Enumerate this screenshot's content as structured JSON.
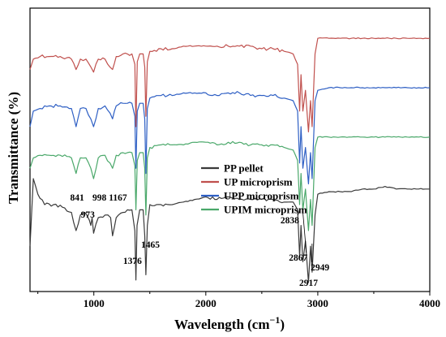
{
  "chart_data": {
    "type": "line",
    "title": "",
    "xlabel": "Wavelength (cm",
    "xlabel_sup": "−1",
    "xlabel_close": ")",
    "ylabel": "Transmittance (%)",
    "xlim": [
      430,
      4000
    ],
    "xticks": [
      1000,
      2000,
      3000,
      4000
    ],
    "xtick_labels": [
      "1000",
      "2000",
      "3000",
      "4000"
    ],
    "grid": false,
    "legend_position": "center-right",
    "series": [
      {
        "name": "PP pellet",
        "color": "#3a3a3a",
        "baseline": 0.72,
        "points": [
          [
            430,
            0.86
          ],
          [
            460,
            0.6
          ],
          [
            500,
            0.66
          ],
          [
            560,
            0.7
          ],
          [
            640,
            0.7
          ],
          [
            720,
            0.71
          ],
          [
            800,
            0.73
          ],
          [
            841,
            0.8
          ],
          [
            880,
            0.74
          ],
          [
            920,
            0.73
          ],
          [
            960,
            0.76
          ],
          [
            973,
            0.78
          ],
          [
            985,
            0.75
          ],
          [
            998,
            0.81
          ],
          [
            1040,
            0.75
          ],
          [
            1100,
            0.74
          ],
          [
            1150,
            0.75
          ],
          [
            1167,
            0.82
          ],
          [
            1200,
            0.75
          ],
          [
            1260,
            0.73
          ],
          [
            1300,
            0.72
          ],
          [
            1340,
            0.72
          ],
          [
            1366,
            0.8
          ],
          [
            1376,
            0.99
          ],
          [
            1386,
            0.78
          ],
          [
            1410,
            0.72
          ],
          [
            1440,
            0.72
          ],
          [
            1455,
            0.82
          ],
          [
            1465,
            0.97
          ],
          [
            1478,
            0.78
          ],
          [
            1500,
            0.7
          ],
          [
            1600,
            0.7
          ],
          [
            1700,
            0.7
          ],
          [
            1800,
            0.69
          ],
          [
            1900,
            0.68
          ],
          [
            2000,
            0.67
          ],
          [
            2100,
            0.68
          ],
          [
            2200,
            0.67
          ],
          [
            2300,
            0.68
          ],
          [
            2400,
            0.68
          ],
          [
            2500,
            0.68
          ],
          [
            2600,
            0.68
          ],
          [
            2700,
            0.69
          ],
          [
            2780,
            0.69
          ],
          [
            2820,
            0.72
          ],
          [
            2838,
            0.9
          ],
          [
            2850,
            0.78
          ],
          [
            2867,
            0.92
          ],
          [
            2890,
            0.84
          ],
          [
            2917,
            1.0
          ],
          [
            2935,
            0.86
          ],
          [
            2949,
            0.96
          ],
          [
            2975,
            0.74
          ],
          [
            3000,
            0.66
          ],
          [
            3100,
            0.65
          ],
          [
            3200,
            0.65
          ],
          [
            3300,
            0.65
          ],
          [
            3400,
            0.64
          ],
          [
            3500,
            0.64
          ],
          [
            3600,
            0.63
          ],
          [
            3700,
            0.64
          ],
          [
            3800,
            0.64
          ],
          [
            3900,
            0.64
          ],
          [
            4000,
            0.64
          ]
        ]
      },
      {
        "name": "UP microprism",
        "color": "#c0504d",
        "baseline": 0.12,
        "points": [
          [
            430,
            0.18
          ],
          [
            460,
            0.14
          ],
          [
            520,
            0.13
          ],
          [
            600,
            0.13
          ],
          [
            700,
            0.13
          ],
          [
            800,
            0.14
          ],
          [
            841,
            0.18
          ],
          [
            880,
            0.14
          ],
          [
            930,
            0.14
          ],
          [
            973,
            0.17
          ],
          [
            998,
            0.19
          ],
          [
            1040,
            0.14
          ],
          [
            1100,
            0.14
          ],
          [
            1167,
            0.18
          ],
          [
            1200,
            0.13
          ],
          [
            1260,
            0.12
          ],
          [
            1300,
            0.12
          ],
          [
            1340,
            0.12
          ],
          [
            1366,
            0.16
          ],
          [
            1376,
            0.4
          ],
          [
            1388,
            0.15
          ],
          [
            1410,
            0.12
          ],
          [
            1440,
            0.12
          ],
          [
            1455,
            0.17
          ],
          [
            1465,
            0.36
          ],
          [
            1478,
            0.15
          ],
          [
            1500,
            0.11
          ],
          [
            1600,
            0.1
          ],
          [
            1700,
            0.1
          ],
          [
            1800,
            0.09
          ],
          [
            1900,
            0.09
          ],
          [
            2000,
            0.09
          ],
          [
            2100,
            0.09
          ],
          [
            2200,
            0.09
          ],
          [
            2300,
            0.09
          ],
          [
            2400,
            0.09
          ],
          [
            2500,
            0.1
          ],
          [
            2600,
            0.1
          ],
          [
            2700,
            0.11
          ],
          [
            2780,
            0.12
          ],
          [
            2820,
            0.16
          ],
          [
            2838,
            0.34
          ],
          [
            2850,
            0.2
          ],
          [
            2867,
            0.34
          ],
          [
            2890,
            0.26
          ],
          [
            2917,
            0.42
          ],
          [
            2935,
            0.3
          ],
          [
            2949,
            0.4
          ],
          [
            2975,
            0.12
          ],
          [
            3000,
            0.06
          ],
          [
            3100,
            0.06
          ],
          [
            3200,
            0.06
          ],
          [
            3300,
            0.06
          ],
          [
            3400,
            0.06
          ],
          [
            3500,
            0.06
          ],
          [
            3600,
            0.06
          ],
          [
            3700,
            0.06
          ],
          [
            3800,
            0.06
          ],
          [
            3900,
            0.06
          ],
          [
            4000,
            0.06
          ]
        ]
      },
      {
        "name": "UPP microprism",
        "color": "#2e5fc4",
        "baseline": 0.31,
        "points": [
          [
            430,
            0.4
          ],
          [
            460,
            0.34
          ],
          [
            520,
            0.33
          ],
          [
            600,
            0.32
          ],
          [
            700,
            0.32
          ],
          [
            800,
            0.33
          ],
          [
            841,
            0.4
          ],
          [
            880,
            0.33
          ],
          [
            930,
            0.33
          ],
          [
            973,
            0.37
          ],
          [
            998,
            0.4
          ],
          [
            1040,
            0.33
          ],
          [
            1100,
            0.32
          ],
          [
            1167,
            0.37
          ],
          [
            1200,
            0.32
          ],
          [
            1260,
            0.31
          ],
          [
            1300,
            0.31
          ],
          [
            1340,
            0.31
          ],
          [
            1366,
            0.36
          ],
          [
            1376,
            0.56
          ],
          [
            1388,
            0.34
          ],
          [
            1410,
            0.31
          ],
          [
            1440,
            0.31
          ],
          [
            1455,
            0.37
          ],
          [
            1465,
            0.58
          ],
          [
            1478,
            0.33
          ],
          [
            1500,
            0.29
          ],
          [
            1600,
            0.28
          ],
          [
            1700,
            0.28
          ],
          [
            1800,
            0.27
          ],
          [
            1900,
            0.27
          ],
          [
            2000,
            0.27
          ],
          [
            2100,
            0.28
          ],
          [
            2200,
            0.27
          ],
          [
            2300,
            0.27
          ],
          [
            2400,
            0.28
          ],
          [
            2500,
            0.28
          ],
          [
            2600,
            0.28
          ],
          [
            2700,
            0.29
          ],
          [
            2780,
            0.3
          ],
          [
            2820,
            0.34
          ],
          [
            2838,
            0.54
          ],
          [
            2850,
            0.4
          ],
          [
            2867,
            0.56
          ],
          [
            2890,
            0.48
          ],
          [
            2917,
            0.62
          ],
          [
            2935,
            0.5
          ],
          [
            2949,
            0.6
          ],
          [
            2975,
            0.3
          ],
          [
            3000,
            0.26
          ],
          [
            3100,
            0.25
          ],
          [
            3200,
            0.25
          ],
          [
            3300,
            0.25
          ],
          [
            3400,
            0.25
          ],
          [
            3500,
            0.25
          ],
          [
            3600,
            0.25
          ],
          [
            3700,
            0.25
          ],
          [
            3800,
            0.25
          ],
          [
            3900,
            0.25
          ],
          [
            4000,
            0.25
          ]
        ]
      },
      {
        "name": "UPIM microprism",
        "color": "#4aa86a",
        "baseline": 0.5,
        "points": [
          [
            430,
            0.56
          ],
          [
            460,
            0.52
          ],
          [
            520,
            0.51
          ],
          [
            600,
            0.51
          ],
          [
            700,
            0.51
          ],
          [
            800,
            0.52
          ],
          [
            841,
            0.58
          ],
          [
            880,
            0.52
          ],
          [
            930,
            0.52
          ],
          [
            973,
            0.56
          ],
          [
            998,
            0.6
          ],
          [
            1040,
            0.52
          ],
          [
            1100,
            0.51
          ],
          [
            1167,
            0.56
          ],
          [
            1200,
            0.51
          ],
          [
            1260,
            0.5
          ],
          [
            1300,
            0.5
          ],
          [
            1340,
            0.5
          ],
          [
            1366,
            0.55
          ],
          [
            1376,
            0.72
          ],
          [
            1388,
            0.53
          ],
          [
            1410,
            0.5
          ],
          [
            1440,
            0.5
          ],
          [
            1455,
            0.56
          ],
          [
            1465,
            0.74
          ],
          [
            1478,
            0.52
          ],
          [
            1500,
            0.48
          ],
          [
            1600,
            0.47
          ],
          [
            1700,
            0.47
          ],
          [
            1800,
            0.47
          ],
          [
            1900,
            0.46
          ],
          [
            2000,
            0.46
          ],
          [
            2100,
            0.47
          ],
          [
            2200,
            0.46
          ],
          [
            2300,
            0.46
          ],
          [
            2400,
            0.47
          ],
          [
            2500,
            0.47
          ],
          [
            2600,
            0.47
          ],
          [
            2700,
            0.48
          ],
          [
            2780,
            0.49
          ],
          [
            2820,
            0.53
          ],
          [
            2838,
            0.7
          ],
          [
            2850,
            0.58
          ],
          [
            2867,
            0.72
          ],
          [
            2890,
            0.64
          ],
          [
            2917,
            0.8
          ],
          [
            2935,
            0.68
          ],
          [
            2949,
            0.78
          ],
          [
            2975,
            0.48
          ],
          [
            3000,
            0.44
          ],
          [
            3100,
            0.44
          ],
          [
            3200,
            0.44
          ],
          [
            3300,
            0.44
          ],
          [
            3400,
            0.44
          ],
          [
            3500,
            0.44
          ],
          [
            3600,
            0.44
          ],
          [
            3700,
            0.44
          ],
          [
            3800,
            0.44
          ],
          [
            3900,
            0.44
          ],
          [
            4000,
            0.44
          ]
        ]
      }
    ],
    "annotations": [
      {
        "label": "841",
        "x": 841
      },
      {
        "label": "973",
        "x": 973
      },
      {
        "label": "998",
        "x": 998
      },
      {
        "label": "1167",
        "x": 1167
      },
      {
        "label": "1376",
        "x": 1376
      },
      {
        "label": "1465",
        "x": 1465
      },
      {
        "label": "2838",
        "x": 2838
      },
      {
        "label": "2867",
        "x": 2867
      },
      {
        "label": "2917",
        "x": 2917
      },
      {
        "label": "2949",
        "x": 2949
      }
    ]
  }
}
